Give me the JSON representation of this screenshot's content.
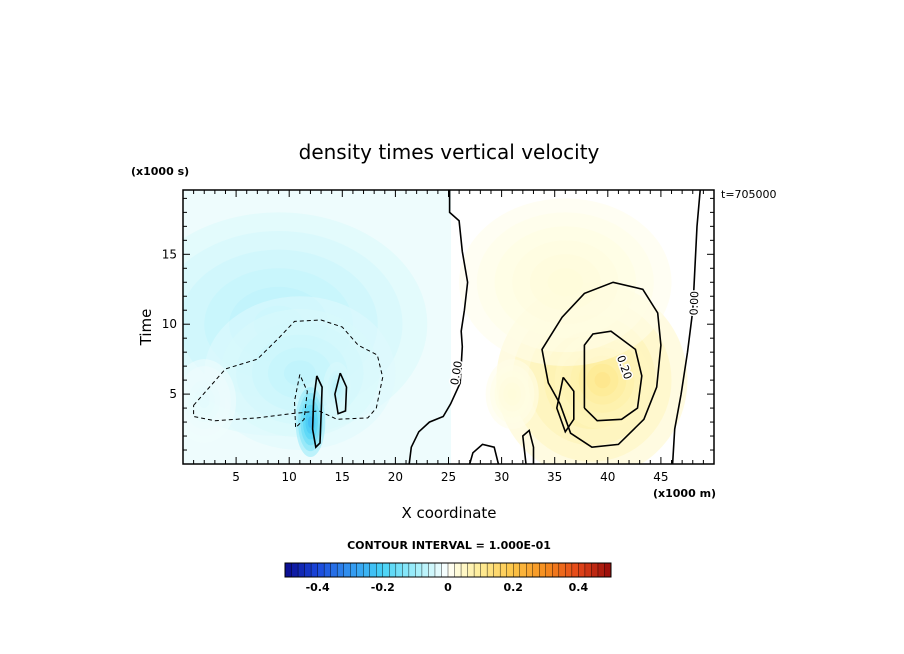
{
  "chart_data": {
    "type": "heatmap",
    "title": "density times vertical velocity",
    "xlabel": "X coordinate",
    "ylabel": "Time",
    "x_unit_label": "(x1000 m)",
    "y_unit_label": "(x1000 s)",
    "time_stamp": "t=705000",
    "xlim": [
      0,
      50
    ],
    "ylim": [
      0,
      19.6
    ],
    "x_ticks": [
      5,
      10,
      15,
      20,
      25,
      30,
      35,
      40,
      45
    ],
    "y_ticks": [
      5,
      10,
      15
    ],
    "contour_interval_label": "CONTOUR INTERVAL = 1.000E-01",
    "contour_labels": [
      {
        "text": "0.00",
        "x": 25.8,
        "y": 6.5,
        "rotate": -80
      },
      {
        "text": "0.00",
        "x": 48.2,
        "y": 11.5,
        "rotate": -88
      },
      {
        "text": "0.20",
        "x": 41.5,
        "y": 6.9,
        "rotate": 70
      }
    ],
    "colorbar": {
      "min": -0.5,
      "max": 0.5,
      "tick_values": [
        -0.4,
        -0.2,
        0,
        0.2,
        0.4
      ],
      "tick_labels": [
        "-0.4",
        "-0.2",
        "0",
        "0.2",
        "0.4"
      ]
    },
    "blobs": [
      {
        "cx": 9,
        "cy": 10,
        "rx": 14,
        "ry": 8,
        "v": -0.08
      },
      {
        "cx": 11,
        "cy": 6.5,
        "rx": 9,
        "ry": 5.5,
        "v": -0.07
      },
      {
        "cx": 12,
        "cy": 3,
        "rx": 1.4,
        "ry": 2.5,
        "v": -0.25
      },
      {
        "cx": 14.5,
        "cy": 5.5,
        "rx": 1.3,
        "ry": 1.8,
        "v": -0.08
      },
      {
        "cx": 2,
        "cy": 4.5,
        "rx": 3,
        "ry": 3,
        "v": -0.03
      },
      {
        "cx": 38.5,
        "cy": 6,
        "rx": 9,
        "ry": 7,
        "v": 0.1
      },
      {
        "cx": 39.5,
        "cy": 6,
        "rx": 4.5,
        "ry": 3.5,
        "v": 0.12
      },
      {
        "cx": 36,
        "cy": 13,
        "rx": 10,
        "ry": 6,
        "v": 0.03
      },
      {
        "cx": 31,
        "cy": 5,
        "rx": 2.5,
        "ry": 2.5,
        "v": 0.03
      }
    ],
    "contours": [
      {
        "style": "dash",
        "points": [
          [
            1,
            4.2
          ],
          [
            4,
            6.8
          ],
          [
            7,
            7.5
          ],
          [
            9,
            9
          ],
          [
            10.5,
            10.2
          ],
          [
            13,
            10.3
          ],
          [
            15,
            9.8
          ],
          [
            16.5,
            8.5
          ],
          [
            18.3,
            7.8
          ],
          [
            18.8,
            6.2
          ],
          [
            18.2,
            4
          ],
          [
            17.4,
            3.3
          ],
          [
            14.5,
            3.2
          ],
          [
            12.8,
            3.8
          ],
          [
            10.2,
            3.6
          ],
          [
            7,
            3.3
          ],
          [
            3,
            3.1
          ],
          [
            1,
            3.4
          ],
          [
            1,
            4.2
          ]
        ]
      },
      {
        "style": "solid",
        "points": [
          [
            12.6,
            6.3
          ],
          [
            12.3,
            4.5
          ],
          [
            12.2,
            2.5
          ],
          [
            12.5,
            1.2
          ],
          [
            12.9,
            1.5
          ],
          [
            13,
            3.5
          ],
          [
            13.1,
            5.5
          ],
          [
            12.6,
            6.3
          ]
        ]
      },
      {
        "style": "solid",
        "points": [
          [
            14.8,
            6.5
          ],
          [
            14.3,
            5
          ],
          [
            14.6,
            3.6
          ],
          [
            15.3,
            3.8
          ],
          [
            15.4,
            5.5
          ],
          [
            14.8,
            6.5
          ]
        ]
      },
      {
        "style": "dash",
        "points": [
          [
            11,
            6.4
          ],
          [
            10.5,
            4.5
          ],
          [
            10.6,
            2.6
          ],
          [
            11.4,
            3.2
          ],
          [
            11.7,
            5.2
          ],
          [
            11,
            6.4
          ]
        ]
      },
      {
        "style": "solid",
        "points": [
          [
            25.1,
            19.6
          ],
          [
            25.1,
            18
          ],
          [
            26,
            17.4
          ],
          [
            26.3,
            15.2
          ],
          [
            26.8,
            13
          ],
          [
            26.5,
            11
          ],
          [
            26.2,
            9.5
          ],
          [
            26.3,
            8.4
          ],
          [
            26.1,
            5.8
          ],
          [
            25.2,
            4.3
          ],
          [
            24.5,
            3.4
          ],
          [
            23.2,
            3
          ],
          [
            22.2,
            2.3
          ],
          [
            21.5,
            1.2
          ],
          [
            21.3,
            0
          ]
        ]
      },
      {
        "style": "solid",
        "points": [
          [
            48.7,
            19.6
          ],
          [
            48.4,
            17
          ],
          [
            48.2,
            14
          ],
          [
            48,
            11
          ],
          [
            47.5,
            8
          ],
          [
            46.9,
            5
          ],
          [
            46.3,
            2.5
          ],
          [
            46.1,
            0
          ]
        ]
      },
      {
        "style": "solid",
        "points": [
          [
            29.7,
            0
          ],
          [
            29.3,
            1.2
          ],
          [
            28.2,
            1.4
          ],
          [
            27.3,
            0.8
          ],
          [
            27,
            0
          ]
        ]
      },
      {
        "style": "solid",
        "points": [
          [
            32.3,
            0
          ],
          [
            32,
            2
          ],
          [
            32.6,
            2.4
          ],
          [
            33,
            1.2
          ],
          [
            33,
            0
          ]
        ]
      },
      {
        "style": "solid",
        "points": [
          [
            35.5,
            4.3
          ],
          [
            34.4,
            5.8
          ],
          [
            33.8,
            8.2
          ],
          [
            35.7,
            10.5
          ],
          [
            37.8,
            12.2
          ],
          [
            40.5,
            13
          ],
          [
            43.3,
            12.5
          ],
          [
            44.7,
            10.8
          ],
          [
            45,
            8.5
          ],
          [
            44.6,
            5.5
          ],
          [
            43.4,
            3.2
          ],
          [
            41,
            1.4
          ],
          [
            38.5,
            1.2
          ],
          [
            36.5,
            2.2
          ],
          [
            35.5,
            4.3
          ]
        ]
      },
      {
        "style": "solid",
        "points": [
          [
            37.8,
            4
          ],
          [
            37.8,
            8.5
          ],
          [
            38.6,
            9.3
          ],
          [
            40.3,
            9.5
          ],
          [
            42.6,
            8.2
          ],
          [
            43.2,
            6.3
          ],
          [
            42.8,
            4
          ],
          [
            41.3,
            3.2
          ],
          [
            39,
            3.1
          ],
          [
            37.8,
            4
          ]
        ]
      },
      {
        "style": "solid",
        "points": [
          [
            35.8,
            6.2
          ],
          [
            35.2,
            4
          ],
          [
            36,
            2.3
          ],
          [
            36.8,
            3.2
          ],
          [
            36.8,
            5.2
          ],
          [
            35.8,
            6.2
          ]
        ]
      }
    ]
  }
}
